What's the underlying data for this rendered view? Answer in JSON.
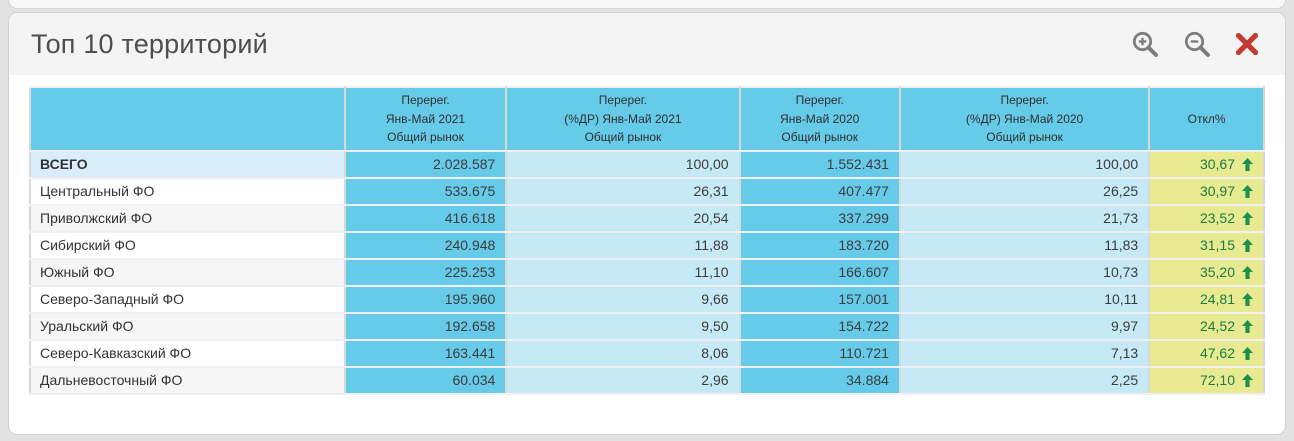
{
  "window": {
    "title": "Топ 10 территорий"
  },
  "toolbar": {
    "zoom_in_icon": "magnifier-plus",
    "zoom_out_icon": "magnifier-minus",
    "close_icon": "red-x"
  },
  "colors": {
    "header_blue": "#66cbe9",
    "cell_light_blue": "#c6e9f6",
    "total_row_label": "#d9eefa",
    "deviation_yellow": "#e8ea92",
    "deviation_green_text": "#1b7c44",
    "arrow_green": "#1f8f4e",
    "close_red": "#c23b33",
    "icon_gray": "#7d7d7d"
  },
  "table": {
    "headers": [
      {
        "lines": []
      },
      {
        "lines": [
          "Перерег.",
          "Янв-Май 2021",
          "Общий рынок"
        ]
      },
      {
        "lines": [
          "Перерег.",
          "(%ДР) Янв-Май 2021",
          "Общий рынок"
        ]
      },
      {
        "lines": [
          "Перерег.",
          "Янв-Май 2020",
          "Общий рынок"
        ]
      },
      {
        "lines": [
          "Перерег.",
          "(%ДР) Янв-Май 2020",
          "Общий рынок"
        ]
      },
      {
        "lines": [
          "Откл%"
        ]
      }
    ],
    "col_widths_pct": [
      25.5,
      13.1,
      18.9,
      13.0,
      20.2,
      9.3
    ],
    "rows": [
      {
        "label": "ВСЕГО",
        "total": true,
        "v2021": "2.028.587",
        "p2021": "100,00",
        "v2020": "1.552.431",
        "p2020": "100,00",
        "dev": "30,67",
        "trend": "up"
      },
      {
        "label": "Центральный ФО",
        "total": false,
        "v2021": "533.675",
        "p2021": "26,31",
        "v2020": "407.477",
        "p2020": "26,25",
        "dev": "30,97",
        "trend": "up"
      },
      {
        "label": "Приволжский ФО",
        "total": false,
        "v2021": "416.618",
        "p2021": "20,54",
        "v2020": "337.299",
        "p2020": "21,73",
        "dev": "23,52",
        "trend": "up"
      },
      {
        "label": "Сибирский ФО",
        "total": false,
        "v2021": "240.948",
        "p2021": "11,88",
        "v2020": "183.720",
        "p2020": "11,83",
        "dev": "31,15",
        "trend": "up"
      },
      {
        "label": "Южный ФО",
        "total": false,
        "v2021": "225.253",
        "p2021": "11,10",
        "v2020": "166.607",
        "p2020": "10,73",
        "dev": "35,20",
        "trend": "up"
      },
      {
        "label": "Северо-Западный ФО",
        "total": false,
        "v2021": "195.960",
        "p2021": "9,66",
        "v2020": "157.001",
        "p2020": "10,11",
        "dev": "24,81",
        "trend": "up"
      },
      {
        "label": "Уральский ФО",
        "total": false,
        "v2021": "192.658",
        "p2021": "9,50",
        "v2020": "154.722",
        "p2020": "9,97",
        "dev": "24,52",
        "trend": "up"
      },
      {
        "label": "Северо-Кавказский ФО",
        "total": false,
        "v2021": "163.441",
        "p2021": "8,06",
        "v2020": "110.721",
        "p2020": "7,13",
        "dev": "47,62",
        "trend": "up"
      },
      {
        "label": "Дальневосточный ФО",
        "total": false,
        "v2021": "60.034",
        "p2021": "2,96",
        "v2020": "34.884",
        "p2020": "2,25",
        "dev": "72,10",
        "trend": "up"
      }
    ]
  }
}
